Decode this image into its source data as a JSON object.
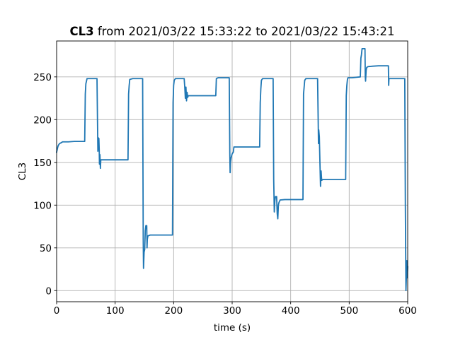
{
  "chart_data": {
    "type": "line",
    "title": {
      "bold_part": "CL3",
      "rest": " from 2021/03/22 15:33:22 to 2021/03/22 15:43:21"
    },
    "xlabel": "time (s)",
    "ylabel": "CL3",
    "xlim": [
      0,
      600
    ],
    "ylim": [
      -13,
      292
    ],
    "xticks": [
      0,
      100,
      200,
      300,
      400,
      500,
      600
    ],
    "yticks": [
      0,
      50,
      100,
      150,
      200,
      250
    ],
    "grid": true,
    "series": [
      {
        "color": "#1f77b4",
        "points": [
          [
            0,
            162
          ],
          [
            1,
            165
          ],
          [
            2,
            168
          ],
          [
            3,
            170
          ],
          [
            5,
            172
          ],
          [
            8,
            173
          ],
          [
            10,
            174
          ],
          [
            20,
            174
          ],
          [
            30,
            174.5
          ],
          [
            40,
            174.5
          ],
          [
            48,
            174.5
          ],
          [
            49,
            230
          ],
          [
            50,
            242
          ],
          [
            52,
            248
          ],
          [
            60,
            248
          ],
          [
            69,
            248
          ],
          [
            70,
            190
          ],
          [
            70.5,
            163
          ],
          [
            71,
            179
          ],
          [
            71.6,
            165
          ],
          [
            72.2,
            178
          ],
          [
            72.8,
            165
          ],
          [
            73.2,
            148
          ],
          [
            74,
            159
          ],
          [
            74.8,
            143
          ],
          [
            75.5,
            153
          ],
          [
            90,
            153
          ],
          [
            110,
            153
          ],
          [
            122,
            153
          ],
          [
            123,
            230
          ],
          [
            124,
            240
          ],
          [
            125,
            247
          ],
          [
            130,
            248
          ],
          [
            147,
            248
          ],
          [
            148,
            60
          ],
          [
            148.5,
            26
          ],
          [
            149.5,
            45
          ],
          [
            150.5,
            48
          ],
          [
            151.5,
            70
          ],
          [
            152.5,
            76
          ],
          [
            154,
            76
          ],
          [
            154.5,
            50
          ],
          [
            155,
            60
          ],
          [
            156,
            64
          ],
          [
            160,
            65
          ],
          [
            180,
            65
          ],
          [
            198,
            65
          ],
          [
            199,
            220
          ],
          [
            200,
            240
          ],
          [
            201,
            246
          ],
          [
            203,
            248
          ],
          [
            218,
            248
          ],
          [
            219,
            238
          ],
          [
            220,
            225
          ],
          [
            221,
            238
          ],
          [
            222,
            222
          ],
          [
            223,
            232
          ],
          [
            224,
            226
          ],
          [
            225,
            228
          ],
          [
            240,
            228
          ],
          [
            260,
            228
          ],
          [
            272,
            228
          ],
          [
            273,
            248
          ],
          [
            276,
            249
          ],
          [
            290,
            249
          ],
          [
            295,
            249
          ],
          [
            296,
            160
          ],
          [
            296.5,
            138
          ],
          [
            297,
            150
          ],
          [
            298,
            155
          ],
          [
            300,
            160
          ],
          [
            302,
            162
          ],
          [
            303,
            168
          ],
          [
            305,
            168
          ],
          [
            320,
            168
          ],
          [
            330,
            168
          ],
          [
            347,
            168
          ],
          [
            348,
            220
          ],
          [
            349,
            236
          ],
          [
            350,
            246
          ],
          [
            352,
            248
          ],
          [
            360,
            248
          ],
          [
            370,
            248
          ],
          [
            371,
            130
          ],
          [
            372,
            92
          ],
          [
            373,
            105
          ],
          [
            374,
            110
          ],
          [
            376,
            110
          ],
          [
            377,
            90
          ],
          [
            378,
            84
          ],
          [
            379,
            100
          ],
          [
            380,
            103
          ],
          [
            382,
            106
          ],
          [
            390,
            106.5
          ],
          [
            410,
            106.5
          ],
          [
            421,
            106.5
          ],
          [
            422,
            230
          ],
          [
            423,
            238
          ],
          [
            424,
            246
          ],
          [
            426,
            248
          ],
          [
            440,
            248
          ],
          [
            446,
            248
          ],
          [
            447,
            200
          ],
          [
            447.5,
            172
          ],
          [
            448,
            188
          ],
          [
            449,
            180
          ],
          [
            450,
            150
          ],
          [
            451,
            122
          ],
          [
            452,
            140
          ],
          [
            453,
            129
          ],
          [
            455,
            130
          ],
          [
            470,
            130
          ],
          [
            494,
            130
          ],
          [
            495,
            228
          ],
          [
            496,
            240
          ],
          [
            497,
            247
          ],
          [
            498,
            249
          ],
          [
            505,
            249
          ],
          [
            519,
            250
          ],
          [
            520,
            272
          ],
          [
            521,
            276
          ],
          [
            522,
            283
          ],
          [
            527,
            283
          ],
          [
            527.5,
            250
          ],
          [
            528,
            245
          ],
          [
            529,
            258
          ],
          [
            530,
            261
          ],
          [
            532,
            262
          ],
          [
            540,
            262.5
          ],
          [
            550,
            263
          ],
          [
            565,
            263
          ],
          [
            567,
            263
          ],
          [
            567.5,
            240
          ],
          [
            568,
            248
          ],
          [
            570,
            248
          ],
          [
            580,
            248
          ],
          [
            595,
            248
          ],
          [
            596,
            100
          ],
          [
            597,
            0
          ],
          [
            598,
            20
          ],
          [
            598.5,
            35
          ],
          [
            599,
            15
          ],
          [
            600,
            28
          ]
        ]
      }
    ]
  }
}
